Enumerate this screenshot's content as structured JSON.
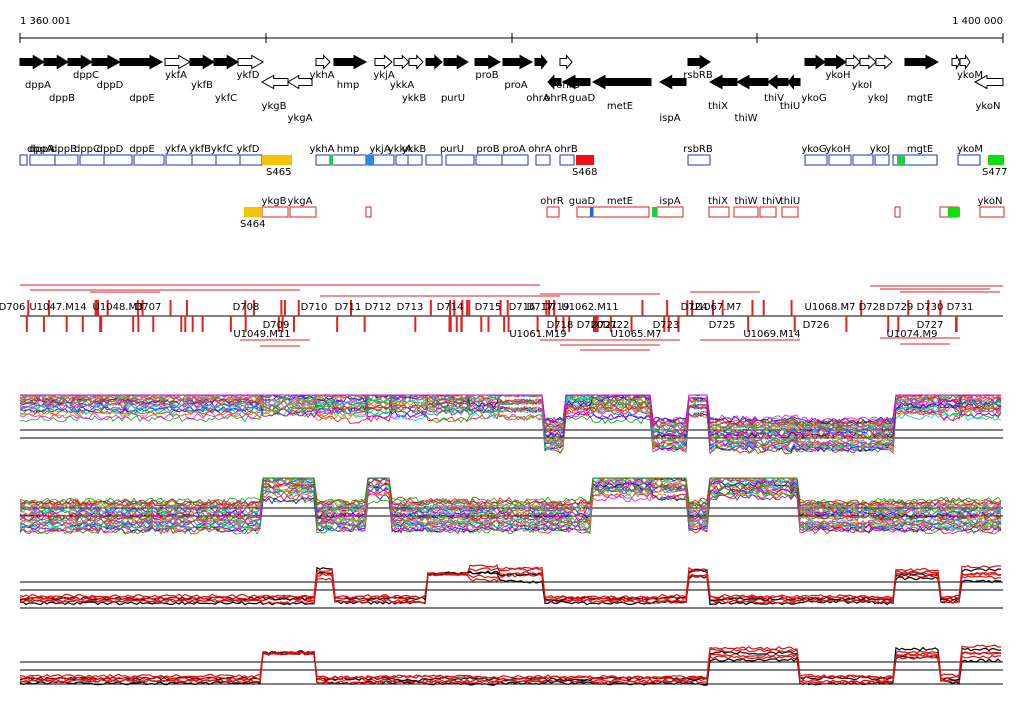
{
  "ruler": {
    "start_label": "1 360 001",
    "end_label": "1 400 000"
  },
  "genes_forward": [
    "dppA",
    "dppB",
    "dppC",
    "dppD",
    "dppE",
    "ykfA",
    "ykfB",
    "ykfC",
    "ykfD",
    "ykhA",
    "hmp",
    "ykjA",
    "ykkA",
    "ykkB",
    "purU",
    "proB",
    "proA",
    "rsbRB",
    "ykoG",
    "ykoH",
    "ykoI",
    "ykoJ",
    "mgtE",
    "ykoM"
  ],
  "genes_reverse": [
    "ykgB",
    "ykgA",
    "ohrA",
    "ohrR",
    "ohrB",
    "guaD",
    "metE",
    "ispA",
    "thiX",
    "thiW",
    "thiV",
    "thiU",
    "ykoN"
  ],
  "segments_s": [
    "S465",
    "S468",
    "S477",
    "S464"
  ],
  "track_fwd_labels": [
    "dppA",
    "dppB",
    "dppC",
    "dppD",
    "dppE",
    "ykfA",
    "ykfB",
    "ykfC",
    "ykfD",
    "ykhA",
    "hmp",
    "ykjA",
    "ykkA",
    "ykkB",
    "purU",
    "proB",
    "proA",
    "ohrA",
    "ohrB",
    "rsbRB",
    "ykoG",
    "ykoH",
    "ykoJ",
    "mgtE",
    "ykoM"
  ],
  "track_rev_labels": [
    "ykgB",
    "ykgA",
    "ohrR",
    "guaD",
    "metE",
    "ispA",
    "thiX",
    "thiW",
    "thiV",
    "thiU",
    "ykoN"
  ],
  "units_upper": [
    "U1047.M14",
    "U1048.M3",
    "D707",
    "D708",
    "D710",
    "D711",
    "D712",
    "D713",
    "D714",
    "D715",
    "D716",
    "D717",
    "D719",
    "U1062.M11",
    "D724",
    "U1067.M7",
    "U1068.M7",
    "D728",
    "D729",
    "D730",
    "D731",
    "D706"
  ],
  "units_lower": [
    "D709",
    "U1049.M11",
    "U1061.M19",
    "D718",
    "D720",
    "D721",
    "D722",
    "D723",
    "U1065.M7",
    "D725",
    "U1069.M14",
    "D726",
    "U1074.M9",
    "D727"
  ]
}
